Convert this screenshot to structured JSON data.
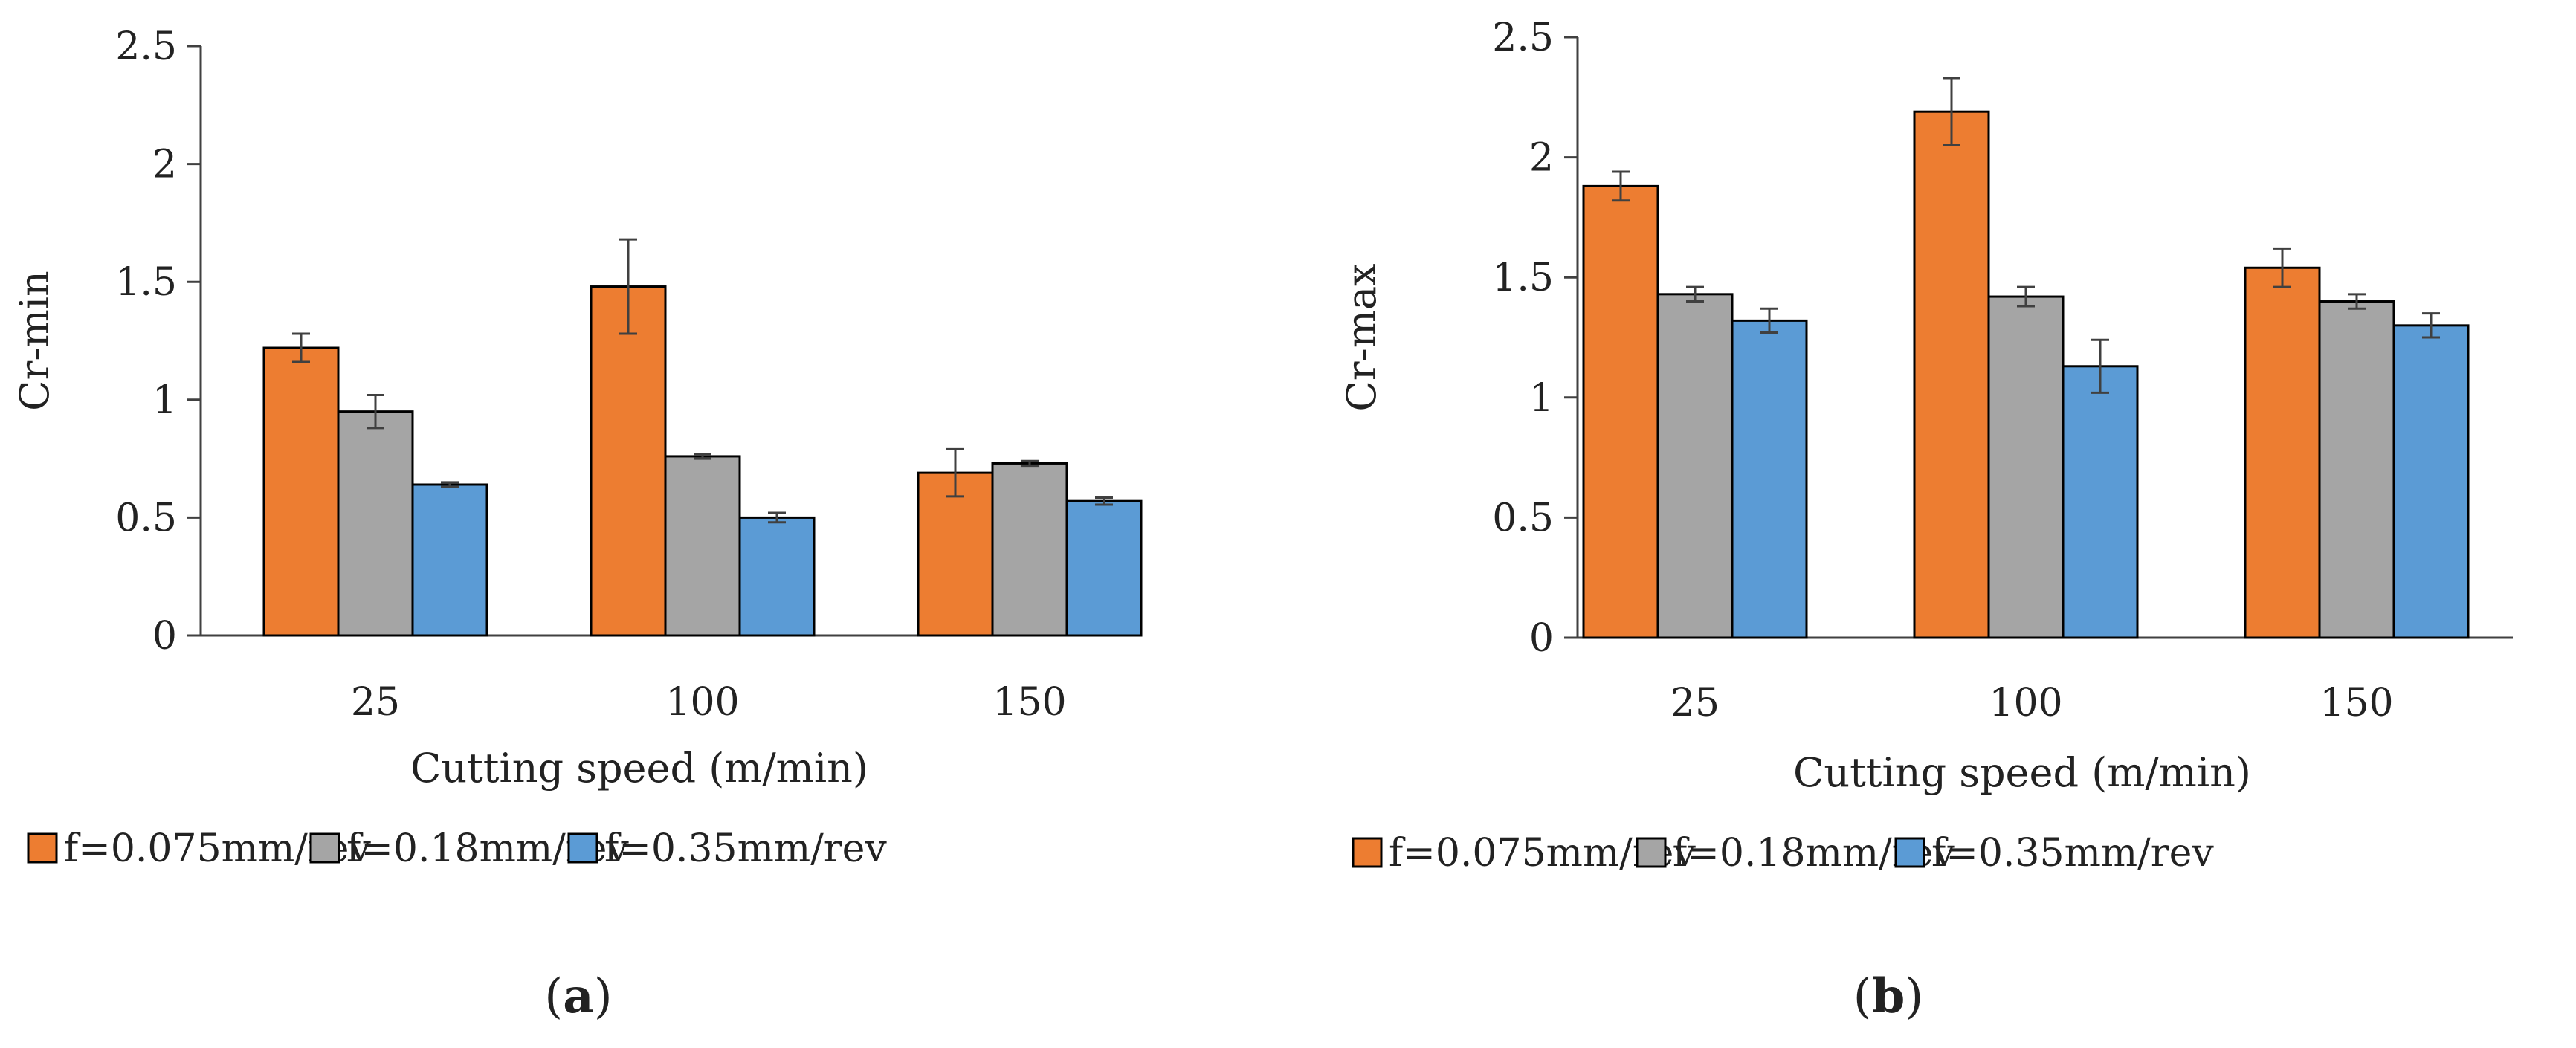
{
  "figure": {
    "panels": [
      {
        "id": "a",
        "label_open": "(",
        "label_letter": "a",
        "label_close": ")"
      },
      {
        "id": "b",
        "label_open": "(",
        "label_letter": "b",
        "label_close": ")"
      }
    ]
  },
  "colors": {
    "series_0": "#ED7D31",
    "series_1": "#A5A5A5",
    "series_2": "#5B9BD5",
    "axis": "#404040",
    "error_bar": "#404040"
  },
  "chart_data": [
    {
      "type": "bar",
      "panel": "a",
      "title": "",
      "xlabel": "Cutting speed (m/min)",
      "ylabel": "Cr-min",
      "ylim": [
        0,
        2.5
      ],
      "yticks": [
        0,
        0.5,
        1,
        1.5,
        2,
        2.5
      ],
      "ytick_labels": [
        "0",
        "0.5",
        "1",
        "1.5",
        "2",
        "2.5"
      ],
      "grid": false,
      "legend_position": "bottom",
      "categories": [
        "25",
        "100",
        "150"
      ],
      "series": [
        {
          "name": "f=0.075mm/rev",
          "values": [
            1.22,
            1.48,
            0.69
          ],
          "errors": [
            0.06,
            0.2,
            0.1
          ]
        },
        {
          "name": "f=0.18mm/rev",
          "values": [
            0.95,
            0.76,
            0.73
          ],
          "errors": [
            0.07,
            0.01,
            0.01
          ]
        },
        {
          "name": "f=0.35mm/rev",
          "values": [
            0.64,
            0.5,
            0.57
          ],
          "errors": [
            0.01,
            0.02,
            0.015
          ]
        }
      ]
    },
    {
      "type": "bar",
      "panel": "b",
      "title": "",
      "xlabel": "Cutting speed (m/min)",
      "ylabel": "Cr-max",
      "ylim": [
        0,
        2.5
      ],
      "yticks": [
        0,
        0.5,
        1,
        1.5,
        2,
        2.5
      ],
      "ytick_labels": [
        "0",
        "0.5",
        "1",
        "1.5",
        "2",
        "2.5"
      ],
      "grid": false,
      "legend_position": "bottom",
      "categories": [
        "25",
        "100",
        "150"
      ],
      "series": [
        {
          "name": "f=0.075mm/rev",
          "values": [
            1.88,
            2.19,
            1.54
          ],
          "errors": [
            0.06,
            0.14,
            0.08
          ]
        },
        {
          "name": "f=0.18mm/rev",
          "values": [
            1.43,
            1.42,
            1.4
          ],
          "errors": [
            0.03,
            0.04,
            0.03
          ]
        },
        {
          "name": "f=0.35mm/rev",
          "values": [
            1.32,
            1.13,
            1.3
          ],
          "errors": [
            0.05,
            0.11,
            0.05
          ]
        }
      ]
    }
  ]
}
